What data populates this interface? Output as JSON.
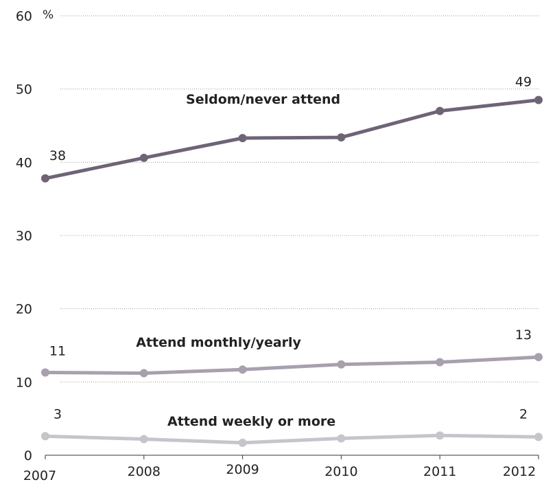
{
  "chart_data": {
    "type": "line",
    "title": "",
    "xlabel": "",
    "ylabel": "",
    "y_unit": "%",
    "x": [
      "2007",
      "2008",
      "2009",
      "2010",
      "2011",
      "2012"
    ],
    "ylim": [
      0,
      60
    ],
    "yticks": [
      "0",
      "10",
      "20",
      "30",
      "40",
      "50",
      "60"
    ],
    "grid": true,
    "series": [
      {
        "name": "Seldom/never attend",
        "values": [
          37.8,
          40.6,
          43.3,
          43.4,
          47.0,
          48.5
        ],
        "color": "#6e6476",
        "start_label": "38",
        "end_label": "49"
      },
      {
        "name": "Attend monthly/yearly",
        "values": [
          11.3,
          11.2,
          11.7,
          12.4,
          12.7,
          13.4
        ],
        "color": "#a8a0ad",
        "start_label": "11",
        "end_label": "13"
      },
      {
        "name": "Attend weekly or more",
        "values": [
          2.6,
          2.2,
          1.7,
          2.3,
          2.7,
          2.5
        ],
        "color": "#c8c4cb",
        "start_label": "3",
        "end_label": "2"
      }
    ]
  }
}
